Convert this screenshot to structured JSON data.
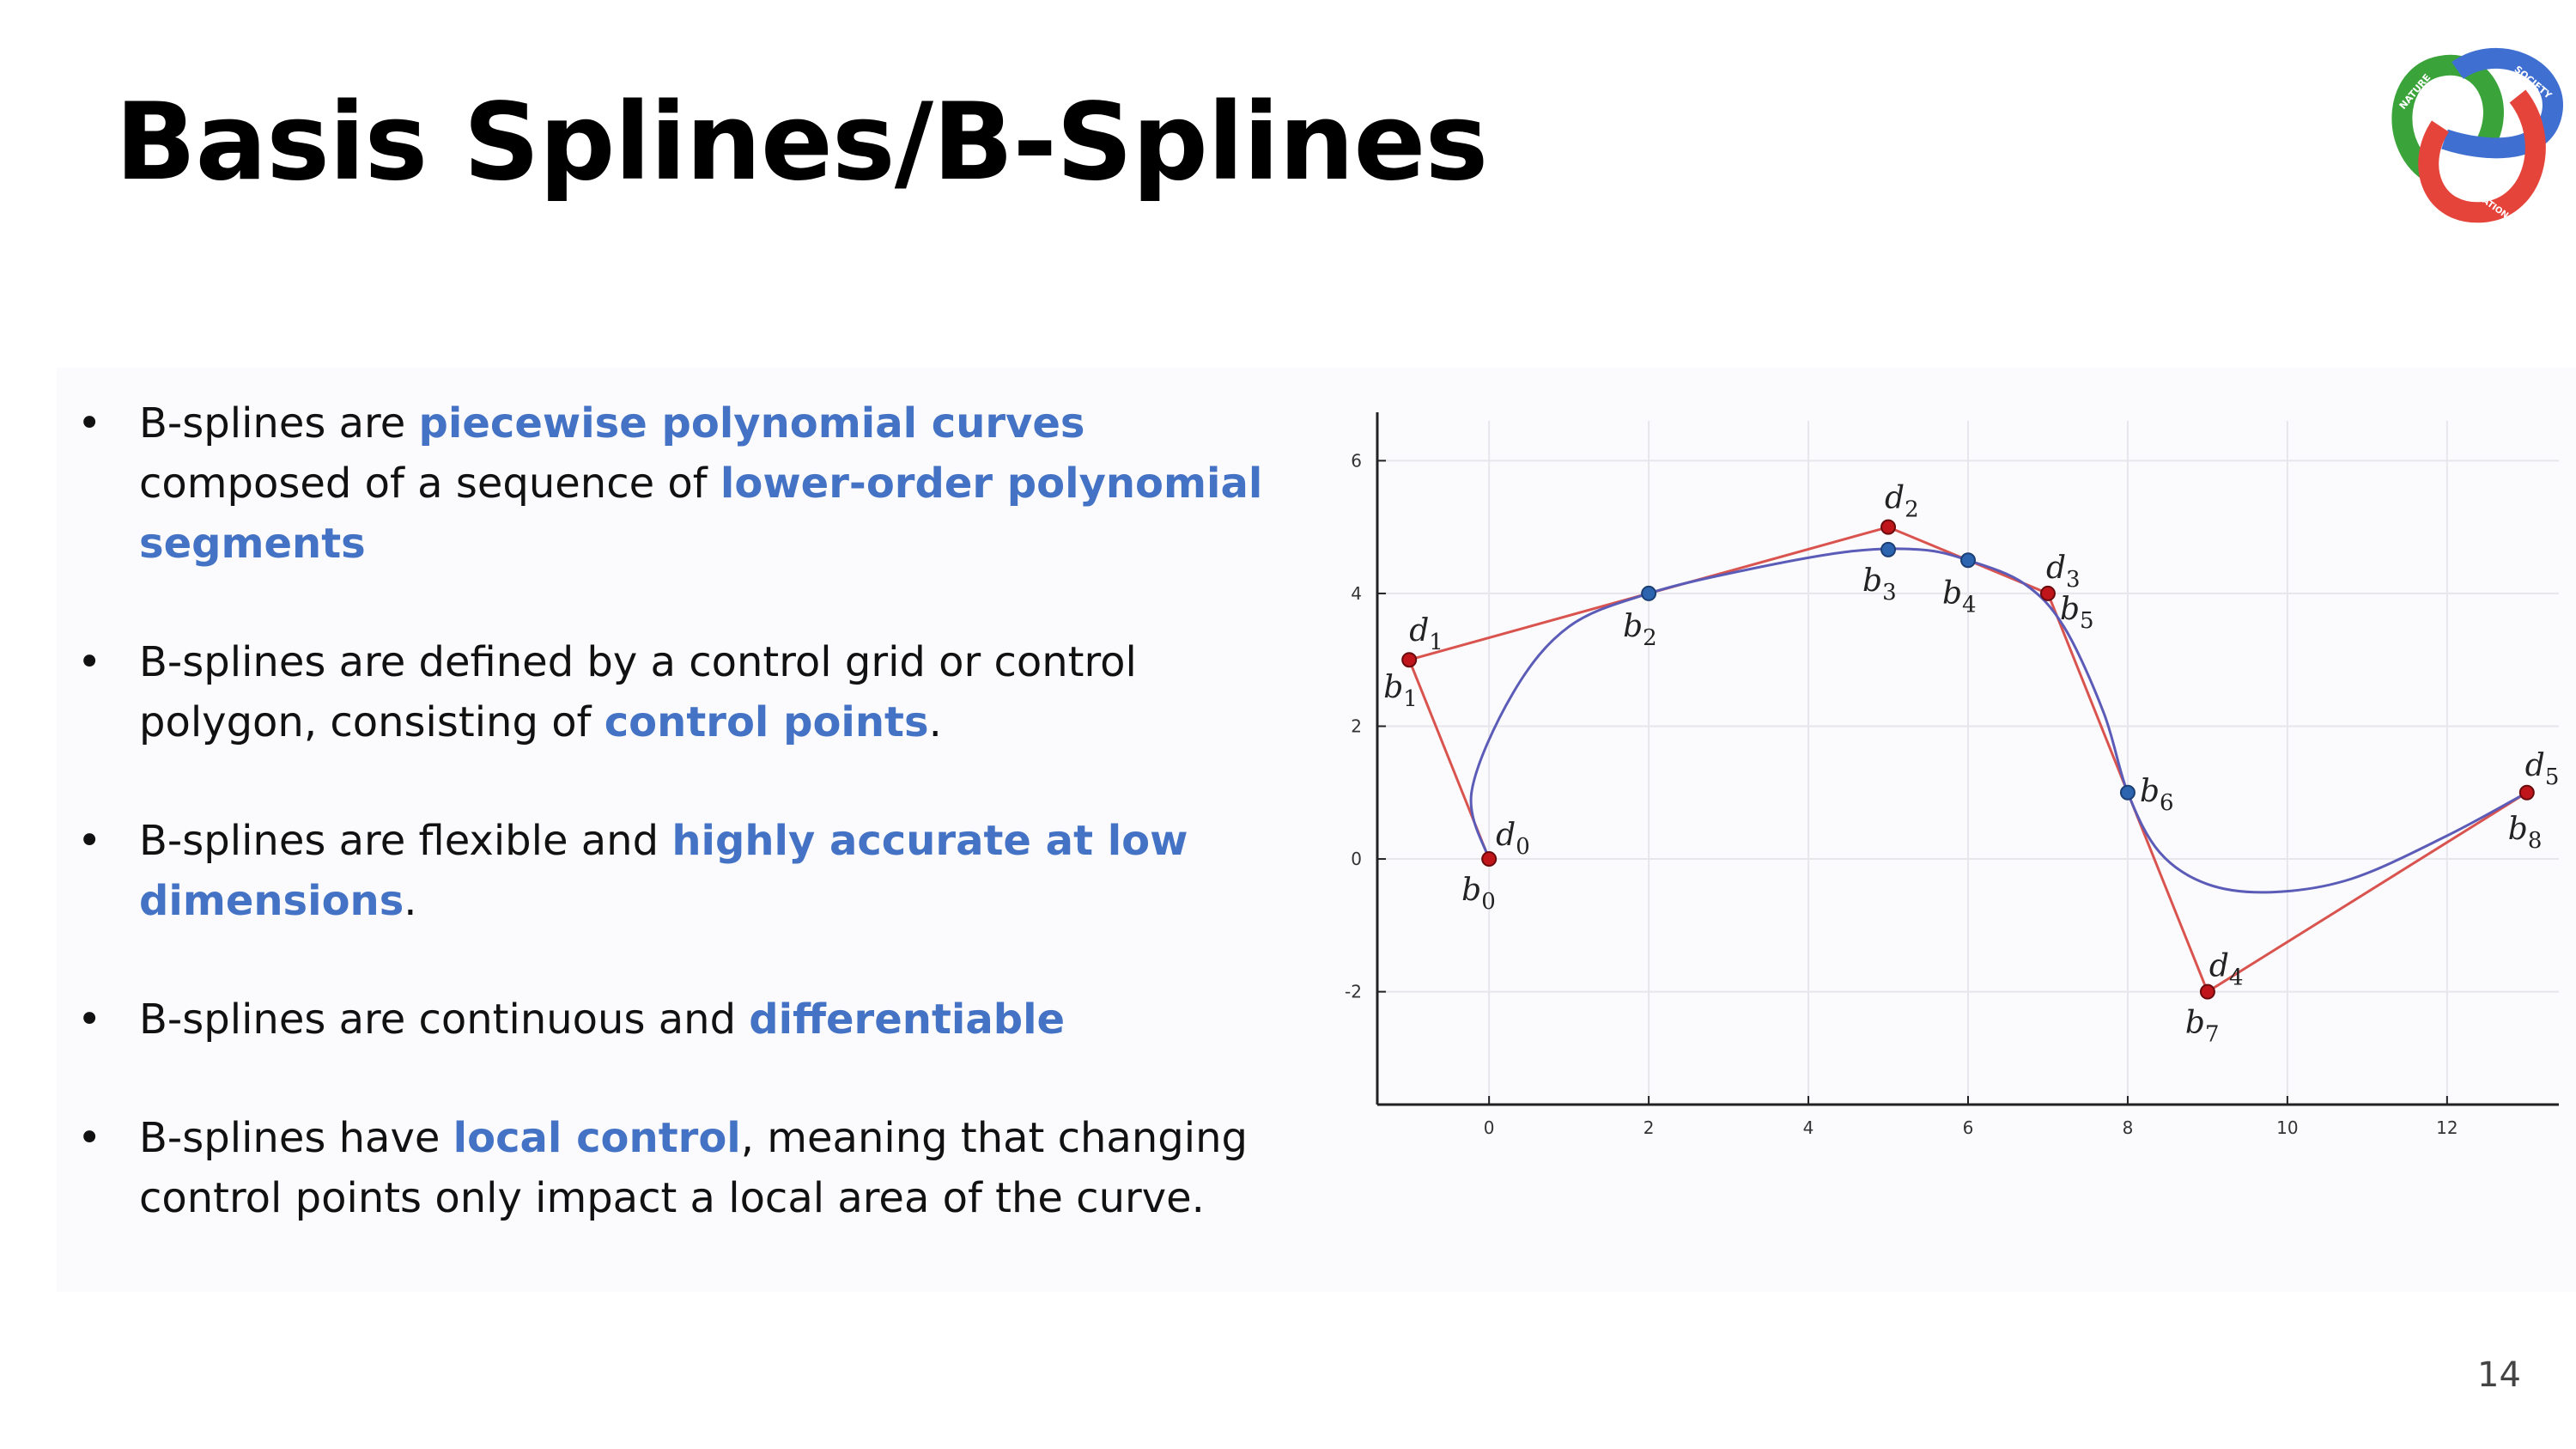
{
  "slide": {
    "title": "Basis Splines/B-Splines",
    "page_number": "14",
    "logo": {
      "text_top_left": "NATURE",
      "text_top_right": "SOCIETY",
      "text_bottom": "COMPUTATION",
      "colors": {
        "green": "#3aa43a",
        "blue": "#3f6fd1",
        "red": "#e5443a"
      }
    }
  },
  "bullets": [
    {
      "parts": [
        {
          "text": "B-splines are ",
          "hl": false
        },
        {
          "text": "piecewise polynomial curves",
          "hl": true
        },
        {
          "text": " composed of a sequence of ",
          "hl": false
        },
        {
          "text": "lower-order polynomial segments",
          "hl": true
        }
      ]
    },
    {
      "parts": [
        {
          "text": "B-splines are defined by a control grid or control polygon, consisting of ",
          "hl": false
        },
        {
          "text": "control points",
          "hl": true
        },
        {
          "text": ".",
          "hl": false
        }
      ]
    },
    {
      "parts": [
        {
          "text": "B-splines are  flexible and ",
          "hl": false
        },
        {
          "text": "highly accurate at low dimensions",
          "hl": true
        },
        {
          "text": ".",
          "hl": false
        }
      ]
    },
    {
      "parts": [
        {
          "text": "B-splines are continuous and ",
          "hl": false
        },
        {
          "text": "differentiable",
          "hl": true
        }
      ]
    },
    {
      "parts": [
        {
          "text": "B-splines have ",
          "hl": false
        },
        {
          "text": "local control",
          "hl": true
        },
        {
          "text": ", meaning that changing control points only impact a local area of the curve.",
          "hl": false
        }
      ]
    }
  ],
  "chart_data": {
    "type": "line",
    "xlim": [
      -1.4,
      13.4
    ],
    "ylim": [
      -3.7,
      6.6
    ],
    "x_ticks": [
      0,
      2,
      4,
      6,
      8,
      10,
      12
    ],
    "y_ticks": [
      -2,
      0,
      2,
      4,
      6
    ],
    "grid": true,
    "colors": {
      "control_polygon": "#d9534f",
      "curve": "#5b5bb8",
      "control_point": "#c0161b",
      "curve_point": "#2c64b0"
    },
    "control_points": [
      {
        "name": "d",
        "sub": "0",
        "x": 0,
        "y": 0
      },
      {
        "name": "d",
        "sub": "1",
        "x": -1,
        "y": 3
      },
      {
        "name": "d",
        "sub": "2",
        "x": 5,
        "y": 5
      },
      {
        "name": "d",
        "sub": "3",
        "x": 7,
        "y": 4
      },
      {
        "name": "d",
        "sub": "4",
        "x": 9,
        "y": -2
      },
      {
        "name": "d",
        "sub": "5",
        "x": 13,
        "y": 1
      }
    ],
    "curve_points": [
      {
        "name": "b",
        "sub": "0",
        "x": 0,
        "y": 0
      },
      {
        "name": "b",
        "sub": "1",
        "x": -1,
        "y": 3
      },
      {
        "name": "b",
        "sub": "2",
        "x": 2,
        "y": 4
      },
      {
        "name": "b",
        "sub": "3",
        "x": 5,
        "y": 4.66
      },
      {
        "name": "b",
        "sub": "4",
        "x": 6,
        "y": 4.5
      },
      {
        "name": "b",
        "sub": "5",
        "x": 7,
        "y": 4
      },
      {
        "name": "b",
        "sub": "6",
        "x": 8,
        "y": 1
      },
      {
        "name": "b",
        "sub": "7",
        "x": 9,
        "y": -2
      },
      {
        "name": "b",
        "sub": "8",
        "x": 13,
        "y": 1
      }
    ],
    "curve": [
      [
        0,
        0
      ],
      [
        -0.22,
        1.0
      ],
      [
        0.3,
        2.5
      ],
      [
        1.0,
        3.5
      ],
      [
        2,
        4
      ],
      [
        3.2,
        4.35
      ],
      [
        4.5,
        4.63
      ],
      [
        5.4,
        4.66
      ],
      [
        6,
        4.5
      ],
      [
        6.7,
        4.15
      ],
      [
        7.2,
        3.5
      ],
      [
        7.7,
        2.2
      ],
      [
        8,
        1
      ],
      [
        8.4,
        0.1
      ],
      [
        9.0,
        -0.38
      ],
      [
        9.8,
        -0.5
      ],
      [
        10.8,
        -0.3
      ],
      [
        12,
        0.35
      ],
      [
        13,
        1
      ]
    ]
  }
}
